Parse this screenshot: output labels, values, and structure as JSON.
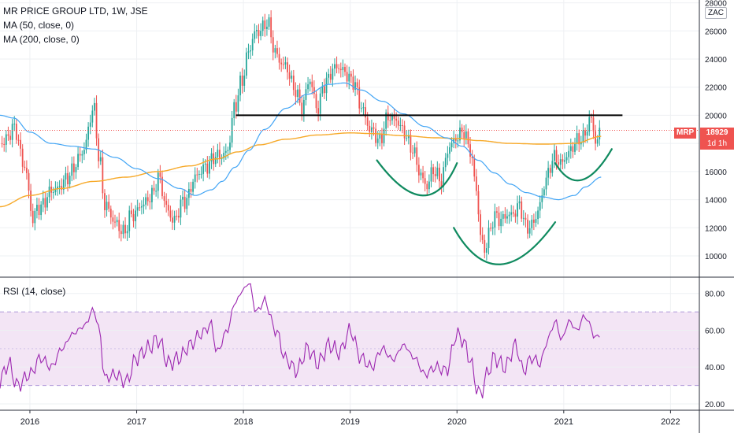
{
  "legend": {
    "title": "MR PRICE GROUP LTD, 1W, JSE",
    "ma50": "MA (50, close, 0)",
    "ma200": "MA (200, close, 0)",
    "rsi": "RSI (14, close)"
  },
  "price_scale_button": "ZAC",
  "last_price_label": "18929",
  "symbol_label": "MRP",
  "countdown_label": "1d 1h",
  "colors": {
    "up": "#26a69a",
    "down": "#ef5350",
    "ma50": "#42a5f5",
    "ma200": "#f7a928",
    "rsi_line": "#9c27b0",
    "rsi_band": "#f3e5f5",
    "neckline": "#000000",
    "arc": "#0f8a5f"
  },
  "chart_data": [
    {
      "type": "candlestick",
      "title": "MR PRICE GROUP LTD, 1W, JSE",
      "x_ticks": [
        "2016",
        "2017",
        "2018",
        "2019",
        "2020",
        "2021",
        "2022"
      ],
      "y_ticks": [
        10000,
        12000,
        14000,
        16000,
        18000,
        20000,
        22000,
        24000,
        26000,
        28000
      ],
      "ylim": [
        8600,
        28200
      ],
      "xlim": [
        2015.72,
        2022.27
      ],
      "last_price": 18929,
      "price_anchors": [
        [
          2015.72,
          18000
        ],
        [
          2015.85,
          19000
        ],
        [
          2015.95,
          16500
        ],
        [
          2016.03,
          12500
        ],
        [
          2016.08,
          13500
        ],
        [
          2016.2,
          14500
        ],
        [
          2016.35,
          15500
        ],
        [
          2016.5,
          17500
        ],
        [
          2016.6,
          20500
        ],
        [
          2016.65,
          17000
        ],
        [
          2016.7,
          13500
        ],
        [
          2016.8,
          12500
        ],
        [
          2016.88,
          11500
        ],
        [
          2016.95,
          13000
        ],
        [
          2017.05,
          13500
        ],
        [
          2017.15,
          14500
        ],
        [
          2017.2,
          15500
        ],
        [
          2017.28,
          13500
        ],
        [
          2017.35,
          12500
        ],
        [
          2017.45,
          14000
        ],
        [
          2017.55,
          15500
        ],
        [
          2017.65,
          16500
        ],
        [
          2017.75,
          17000
        ],
        [
          2017.85,
          17500
        ],
        [
          2017.92,
          20500
        ],
        [
          2017.98,
          22500
        ],
        [
          2018.05,
          24500
        ],
        [
          2018.12,
          26000
        ],
        [
          2018.22,
          26500
        ],
        [
          2018.3,
          24500
        ],
        [
          2018.38,
          23500
        ],
        [
          2018.48,
          22000
        ],
        [
          2018.55,
          20500
        ],
        [
          2018.62,
          22500
        ],
        [
          2018.7,
          20500
        ],
        [
          2018.75,
          22000
        ],
        [
          2018.85,
          23500
        ],
        [
          2018.95,
          23000
        ],
        [
          2019.03,
          22500
        ],
        [
          2019.1,
          20500
        ],
        [
          2019.2,
          19000
        ],
        [
          2019.27,
          18000
        ],
        [
          2019.35,
          20000
        ],
        [
          2019.43,
          19500
        ],
        [
          2019.5,
          19000
        ],
        [
          2019.58,
          17500
        ],
        [
          2019.65,
          16000
        ],
        [
          2019.72,
          15000
        ],
        [
          2019.78,
          16000
        ],
        [
          2019.85,
          15500
        ],
        [
          2019.92,
          17500
        ],
        [
          2020.0,
          18500
        ],
        [
          2020.05,
          19000
        ],
        [
          2020.12,
          17500
        ],
        [
          2020.18,
          15000
        ],
        [
          2020.22,
          11500
        ],
        [
          2020.26,
          10200
        ],
        [
          2020.3,
          11500
        ],
        [
          2020.35,
          13000
        ],
        [
          2020.42,
          12500
        ],
        [
          2020.5,
          13000
        ],
        [
          2020.58,
          13500
        ],
        [
          2020.65,
          12000
        ],
        [
          2020.72,
          12500
        ],
        [
          2020.78,
          13500
        ],
        [
          2020.83,
          15500
        ],
        [
          2020.9,
          17000
        ],
        [
          2020.97,
          16500
        ],
        [
          2021.05,
          17500
        ],
        [
          2021.12,
          18000
        ],
        [
          2021.18,
          18500
        ],
        [
          2021.25,
          19800
        ],
        [
          2021.3,
          18000
        ],
        [
          2021.35,
          18929
        ]
      ],
      "ma50_anchors": [
        [
          2015.72,
          20000
        ],
        [
          2015.85,
          19800
        ],
        [
          2016.0,
          18800
        ],
        [
          2016.2,
          18000
        ],
        [
          2016.4,
          17800
        ],
        [
          2016.6,
          17600
        ],
        [
          2016.8,
          17000
        ],
        [
          2017.0,
          16200
        ],
        [
          2017.2,
          15500
        ],
        [
          2017.4,
          14800
        ],
        [
          2017.55,
          14300
        ],
        [
          2017.7,
          14700
        ],
        [
          2017.8,
          15300
        ],
        [
          2017.92,
          16300
        ],
        [
          2018.05,
          17500
        ],
        [
          2018.2,
          19000
        ],
        [
          2018.4,
          20500
        ],
        [
          2018.6,
          21500
        ],
        [
          2018.8,
          22200
        ],
        [
          2018.95,
          22300
        ],
        [
          2019.1,
          21800
        ],
        [
          2019.3,
          21000
        ],
        [
          2019.5,
          20100
        ],
        [
          2019.7,
          19200
        ],
        [
          2019.9,
          18400
        ],
        [
          2020.05,
          17800
        ],
        [
          2020.2,
          16800
        ],
        [
          2020.35,
          15900
        ],
        [
          2020.5,
          15100
        ],
        [
          2020.65,
          14500
        ],
        [
          2020.8,
          14200
        ],
        [
          2020.95,
          14000
        ],
        [
          2021.1,
          14300
        ],
        [
          2021.2,
          14900
        ],
        [
          2021.35,
          15600
        ]
      ],
      "ma200_anchors": [
        [
          2015.72,
          13500
        ],
        [
          2016.0,
          14300
        ],
        [
          2016.3,
          14800
        ],
        [
          2016.6,
          15300
        ],
        [
          2016.9,
          15600
        ],
        [
          2017.2,
          16000
        ],
        [
          2017.5,
          16400
        ],
        [
          2017.75,
          16900
        ],
        [
          2017.95,
          17400
        ],
        [
          2018.15,
          17900
        ],
        [
          2018.4,
          18300
        ],
        [
          2018.7,
          18600
        ],
        [
          2019.0,
          18750
        ],
        [
          2019.2,
          18700
        ],
        [
          2019.5,
          18550
        ],
        [
          2019.8,
          18400
        ],
        [
          2020.0,
          18350
        ],
        [
          2020.2,
          18200
        ],
        [
          2020.5,
          18000
        ],
        [
          2020.8,
          17950
        ],
        [
          2021.1,
          18000
        ],
        [
          2021.35,
          18500
        ]
      ],
      "annotations": {
        "neckline": {
          "x": [
            2017.93,
            2021.55
          ],
          "y": 20000
        },
        "arcs": [
          {
            "x": [
              2019.25,
              2019.73,
              2020.0
            ],
            "y": [
              16800,
              14300,
              16600
            ]
          },
          {
            "x": [
              2019.97,
              2020.37,
              2020.92
            ],
            "y": [
              12000,
              9400,
              12400
            ]
          },
          {
            "x": [
              2020.92,
              2021.15,
              2021.45
            ],
            "y": [
              16600,
              15400,
              17600
            ]
          }
        ]
      }
    },
    {
      "type": "line",
      "title": "RSI (14, close)",
      "x_ticks": [
        "2016",
        "2017",
        "2018",
        "2019",
        "2020",
        "2021",
        "2022"
      ],
      "y_ticks": [
        20,
        40,
        60,
        80
      ],
      "ylim": [
        17,
        88
      ],
      "band": [
        30,
        70
      ],
      "rsi_anchors": [
        [
          2015.72,
          33
        ],
        [
          2015.8,
          42
        ],
        [
          2015.88,
          30
        ],
        [
          2016.0,
          36
        ],
        [
          2016.1,
          45
        ],
        [
          2016.2,
          40
        ],
        [
          2016.3,
          50
        ],
        [
          2016.4,
          58
        ],
        [
          2016.5,
          62
        ],
        [
          2016.6,
          71
        ],
        [
          2016.65,
          60
        ],
        [
          2016.7,
          34
        ],
        [
          2016.8,
          36
        ],
        [
          2016.9,
          32
        ],
        [
          2017.0,
          45
        ],
        [
          2017.1,
          50
        ],
        [
          2017.2,
          55
        ],
        [
          2017.3,
          42
        ],
        [
          2017.4,
          45
        ],
        [
          2017.5,
          52
        ],
        [
          2017.6,
          58
        ],
        [
          2017.7,
          63
        ],
        [
          2017.75,
          48
        ],
        [
          2017.85,
          60
        ],
        [
          2017.92,
          75
        ],
        [
          2018.0,
          82
        ],
        [
          2018.05,
          86
        ],
        [
          2018.12,
          70
        ],
        [
          2018.2,
          76
        ],
        [
          2018.3,
          60
        ],
        [
          2018.4,
          44
        ],
        [
          2018.5,
          38
        ],
        [
          2018.6,
          50
        ],
        [
          2018.7,
          42
        ],
        [
          2018.8,
          52
        ],
        [
          2018.9,
          48
        ],
        [
          2019.0,
          60
        ],
        [
          2019.1,
          45
        ],
        [
          2019.2,
          40
        ],
        [
          2019.3,
          50
        ],
        [
          2019.4,
          44
        ],
        [
          2019.5,
          52
        ],
        [
          2019.6,
          45
        ],
        [
          2019.7,
          36
        ],
        [
          2019.8,
          40
        ],
        [
          2019.9,
          38
        ],
        [
          2020.0,
          58
        ],
        [
          2020.05,
          55
        ],
        [
          2020.12,
          45
        ],
        [
          2020.18,
          30
        ],
        [
          2020.22,
          24
        ],
        [
          2020.27,
          35
        ],
        [
          2020.35,
          45
        ],
        [
          2020.45,
          40
        ],
        [
          2020.55,
          52
        ],
        [
          2020.62,
          38
        ],
        [
          2020.7,
          45
        ],
        [
          2020.78,
          42
        ],
        [
          2020.85,
          55
        ],
        [
          2020.92,
          65
        ],
        [
          2020.98,
          55
        ],
        [
          2021.05,
          65
        ],
        [
          2021.12,
          60
        ],
        [
          2021.2,
          68
        ],
        [
          2021.25,
          62
        ],
        [
          2021.3,
          55
        ],
        [
          2021.35,
          60
        ]
      ]
    }
  ]
}
